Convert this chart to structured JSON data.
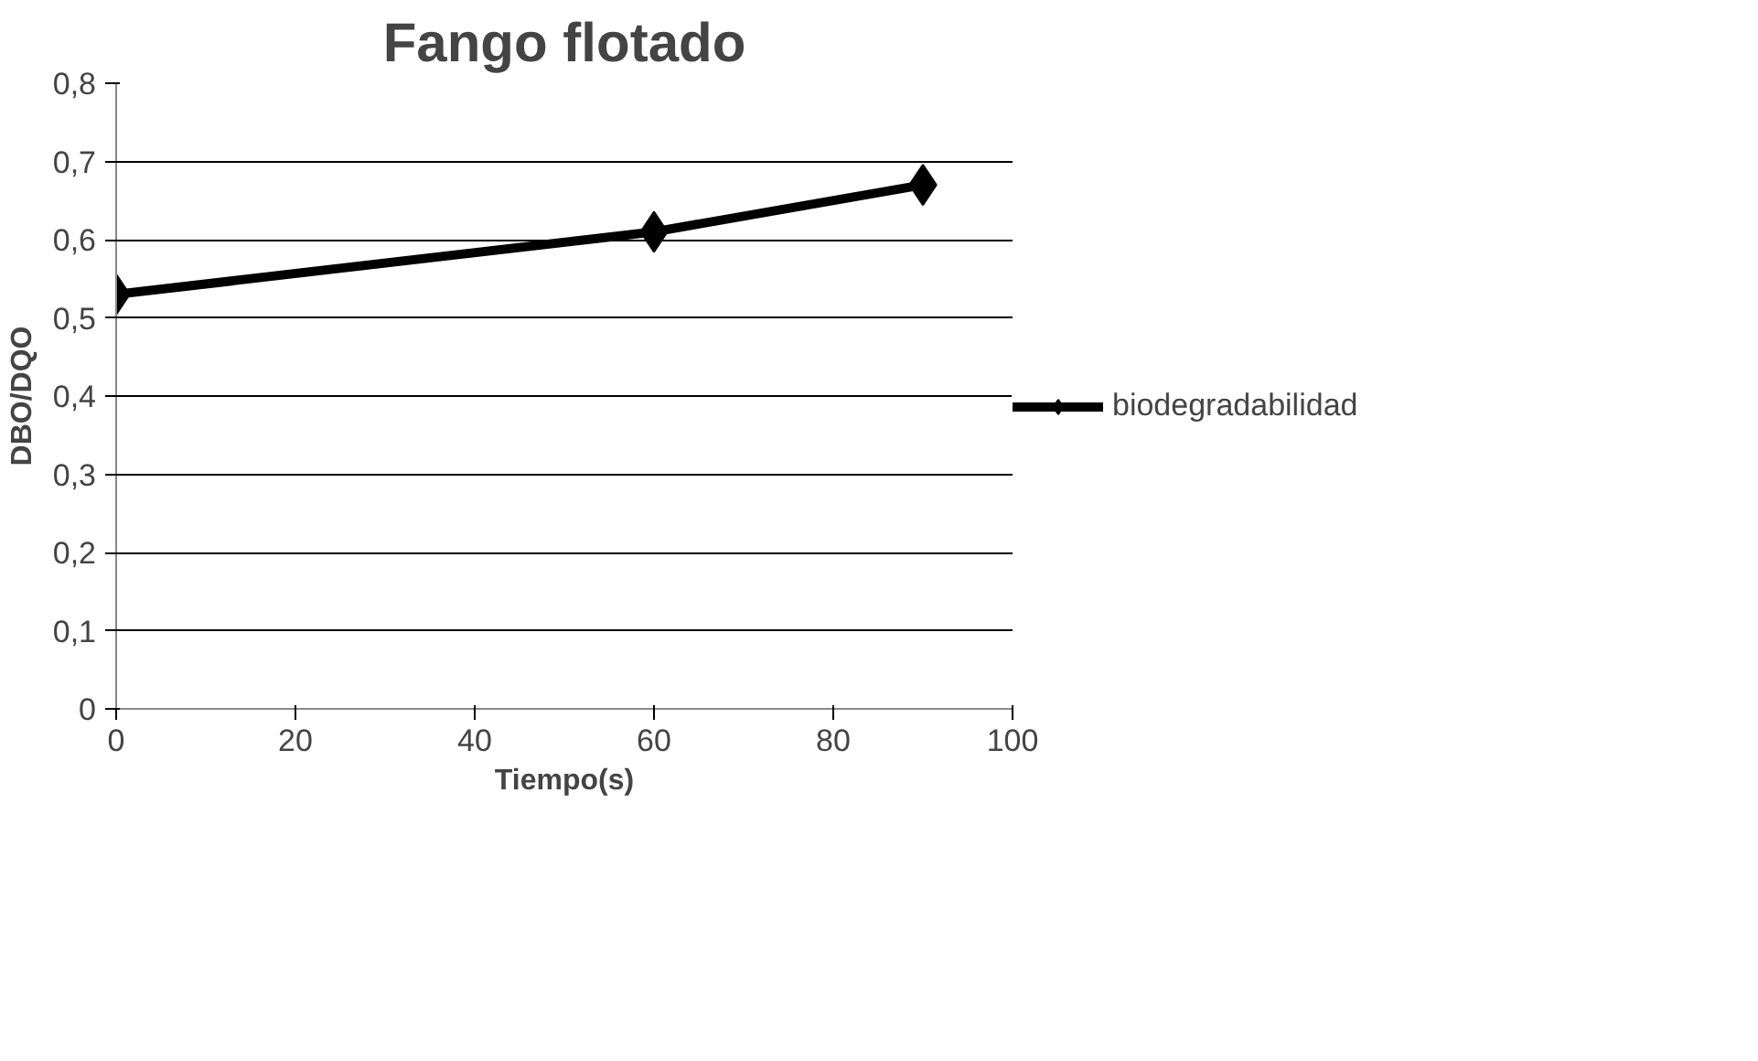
{
  "chart_data": {
    "type": "line",
    "title": "Fango flotado",
    "xlabel": "Tiempo(s)",
    "ylabel": "DBO/DQO",
    "x": [
      0,
      60,
      90
    ],
    "series": [
      {
        "name": "biodegradabilidad",
        "color": "#000000",
        "values": [
          0.53,
          0.61,
          0.67
        ]
      }
    ],
    "xlim": [
      0,
      100
    ],
    "xticks": [
      0,
      20,
      40,
      60,
      80,
      100
    ],
    "ylim": [
      0,
      0.8
    ],
    "yticks": [
      {
        "value": 0,
        "label": "0"
      },
      {
        "value": 0.1,
        "label": "0,1"
      },
      {
        "value": 0.2,
        "label": "0,2"
      },
      {
        "value": 0.3,
        "label": "0,3"
      },
      {
        "value": 0.4,
        "label": "0,4"
      },
      {
        "value": 0.5,
        "label": "0,5"
      },
      {
        "value": 0.6,
        "label": "0,6"
      },
      {
        "value": 0.7,
        "label": "0,7"
      },
      {
        "value": 0.8,
        "label": "0,8"
      }
    ],
    "grid": "y",
    "legend": "right",
    "marker": "diamond",
    "line_style": "solid"
  }
}
